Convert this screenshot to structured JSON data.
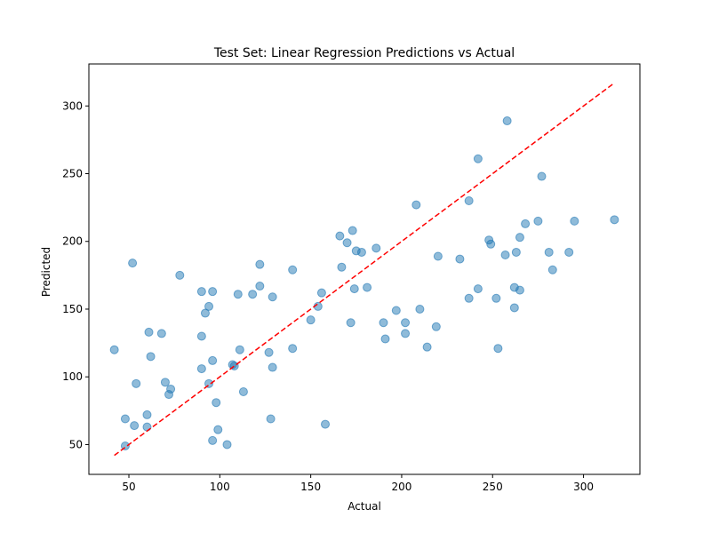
{
  "chart_data": {
    "type": "scatter",
    "title": "Test Set: Linear Regression Predictions vs Actual",
    "xlabel": "Actual",
    "ylabel": "Predicted",
    "xlim": [
      28,
      331
    ],
    "ylim": [
      28,
      331
    ],
    "xticks": [
      50,
      100,
      150,
      200,
      250,
      300
    ],
    "yticks": [
      50,
      100,
      150,
      200,
      250,
      300
    ],
    "grid": false,
    "point_color": "#1f77b4",
    "line_color": "#ff0000",
    "reference_line": {
      "x": [
        42,
        317
      ],
      "y": [
        42,
        317
      ],
      "style": "dashed"
    },
    "points": [
      [
        42,
        120
      ],
      [
        48,
        69
      ],
      [
        48,
        49
      ],
      [
        52,
        184
      ],
      [
        53,
        64
      ],
      [
        54,
        95
      ],
      [
        60,
        72
      ],
      [
        60,
        63
      ],
      [
        61,
        133
      ],
      [
        62,
        115
      ],
      [
        68,
        132
      ],
      [
        70,
        96
      ],
      [
        72,
        87
      ],
      [
        73,
        91
      ],
      [
        78,
        175
      ],
      [
        90,
        163
      ],
      [
        90,
        130
      ],
      [
        90,
        106
      ],
      [
        92,
        147
      ],
      [
        94,
        152
      ],
      [
        94,
        95
      ],
      [
        96,
        163
      ],
      [
        96,
        53
      ],
      [
        96,
        112
      ],
      [
        98,
        81
      ],
      [
        99,
        61
      ],
      [
        104,
        50
      ],
      [
        107,
        109
      ],
      [
        108,
        108
      ],
      [
        110,
        161
      ],
      [
        111,
        120
      ],
      [
        113,
        89
      ],
      [
        118,
        161
      ],
      [
        122,
        183
      ],
      [
        122,
        167
      ],
      [
        127,
        118
      ],
      [
        128,
        69
      ],
      [
        129,
        107
      ],
      [
        129,
        159
      ],
      [
        140,
        179
      ],
      [
        140,
        121
      ],
      [
        150,
        142
      ],
      [
        154,
        152
      ],
      [
        156,
        162
      ],
      [
        158,
        65
      ],
      [
        166,
        204
      ],
      [
        167,
        181
      ],
      [
        170,
        199
      ],
      [
        172,
        140
      ],
      [
        173,
        208
      ],
      [
        174,
        165
      ],
      [
        175,
        193
      ],
      [
        178,
        192
      ],
      [
        181,
        166
      ],
      [
        186,
        195
      ],
      [
        190,
        140
      ],
      [
        191,
        128
      ],
      [
        197,
        149
      ],
      [
        202,
        140
      ],
      [
        202,
        132
      ],
      [
        208,
        227
      ],
      [
        210,
        150
      ],
      [
        214,
        122
      ],
      [
        219,
        137
      ],
      [
        220,
        189
      ],
      [
        232,
        187
      ],
      [
        237,
        230
      ],
      [
        237,
        158
      ],
      [
        242,
        261
      ],
      [
        242,
        165
      ],
      [
        248,
        201
      ],
      [
        249,
        198
      ],
      [
        252,
        158
      ],
      [
        253,
        121
      ],
      [
        257,
        190
      ],
      [
        258,
        289
      ],
      [
        262,
        166
      ],
      [
        262,
        151
      ],
      [
        263,
        192
      ],
      [
        265,
        203
      ],
      [
        265,
        164
      ],
      [
        268,
        213
      ],
      [
        275,
        215
      ],
      [
        277,
        248
      ],
      [
        281,
        192
      ],
      [
        283,
        179
      ],
      [
        292,
        192
      ],
      [
        295,
        215
      ],
      [
        317,
        216
      ]
    ]
  }
}
